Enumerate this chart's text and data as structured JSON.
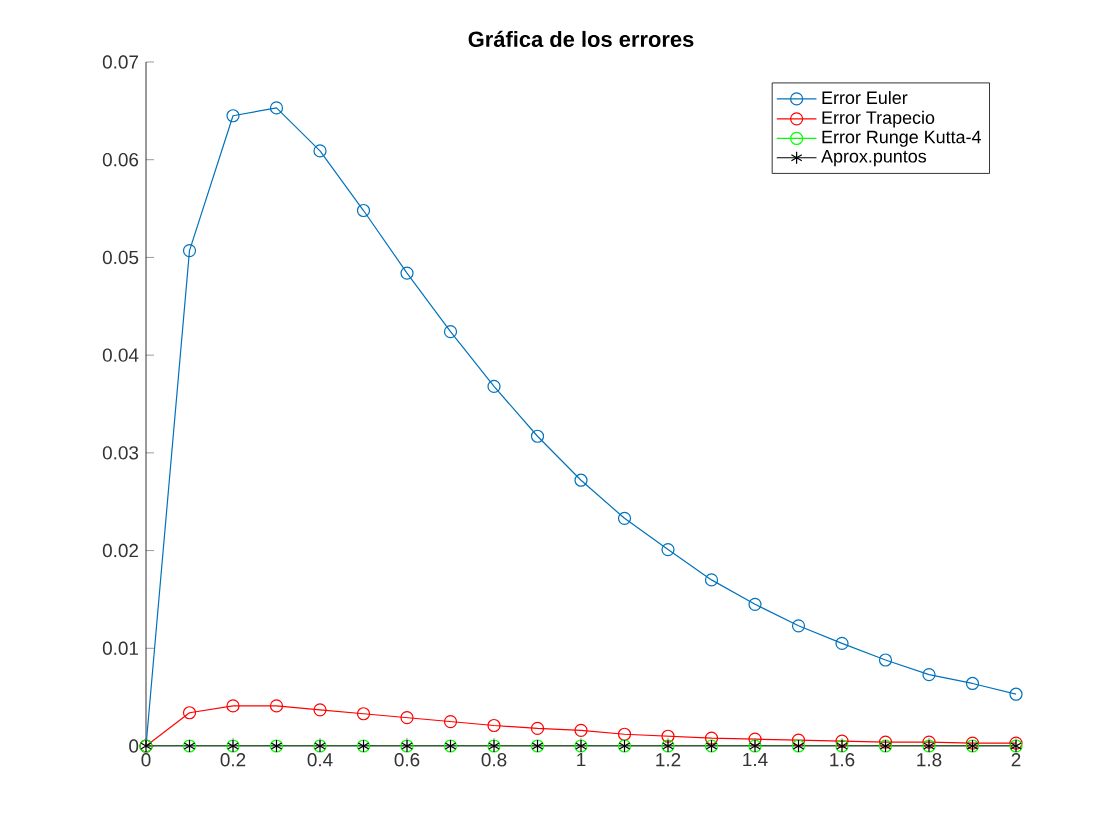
{
  "chart_data": {
    "type": "line",
    "title": "Gráfica de los errores",
    "x": [
      0,
      0.1,
      0.2,
      0.3,
      0.4,
      0.5,
      0.6,
      0.7,
      0.8,
      0.9,
      1.0,
      1.1,
      1.2,
      1.3,
      1.4,
      1.5,
      1.6,
      1.7,
      1.8,
      1.9,
      2.0
    ],
    "series": [
      {
        "name": "Error Euler",
        "color": "#0072bd",
        "marker": "circle",
        "values": [
          0,
          0.0507,
          0.0645,
          0.0653,
          0.0609,
          0.0548,
          0.0484,
          0.0424,
          0.0368,
          0.0317,
          0.0272,
          0.0233,
          0.0201,
          0.017,
          0.0145,
          0.0123,
          0.0105,
          0.0088,
          0.0073,
          0.0064,
          0.0053
        ]
      },
      {
        "name": "Error Trapecio",
        "color": "#ff0000",
        "marker": "circle",
        "values": [
          0,
          0.0034,
          0.0041,
          0.0041,
          0.0037,
          0.0033,
          0.0029,
          0.0025,
          0.0021,
          0.0018,
          0.0016,
          0.0012,
          0.001,
          0.0008,
          0.0007,
          0.0006,
          0.0005,
          0.0004,
          0.0004,
          0.0003,
          0.0003
        ]
      },
      {
        "name": "Error Runge Kutta-4",
        "color": "#00ff00",
        "marker": "circle",
        "values": [
          0,
          0,
          0,
          0,
          0,
          0,
          0,
          0,
          0,
          0,
          0,
          0,
          0,
          0,
          0,
          0,
          0,
          0,
          0,
          0,
          0
        ]
      },
      {
        "name": "Aprox.puntos",
        "color": "#000000",
        "marker": "cross",
        "values": [
          0,
          0,
          0,
          0,
          0,
          0,
          0,
          0,
          0,
          0,
          0,
          0,
          0,
          0,
          0,
          0,
          0,
          0,
          0,
          0,
          0
        ]
      }
    ],
    "xlim": [
      0,
      2
    ],
    "xticks": [
      0,
      0.2,
      0.4,
      0.6,
      0.8,
      1,
      1.2,
      1.4,
      1.6,
      1.8,
      2
    ],
    "ylim": [
      0,
      0.07
    ],
    "yticks": [
      0,
      0.01,
      0.02,
      0.03,
      0.04,
      0.05,
      0.06,
      0.07
    ],
    "grid": false,
    "legend": "top right"
  }
}
